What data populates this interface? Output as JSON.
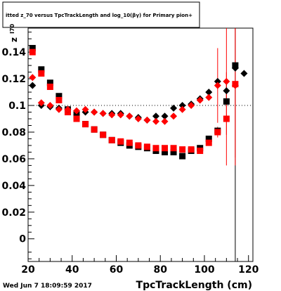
{
  "chart_data": {
    "type": "scatter",
    "title": "itted  z_70 versus TpcTrackLength and log_10(βγ) for Primary pion+",
    "xlabel": "TpcTrackLength (cm)",
    "ylabel": "z",
    "ylabel_sub": "I70",
    "xlim": [
      20,
      122
    ],
    "ylim": [
      -0.017,
      0.158
    ],
    "x_ticks": [
      20,
      40,
      60,
      80,
      100,
      120
    ],
    "y_ticks": [
      0,
      0.02,
      0.04,
      0.06,
      0.08,
      0.1,
      0.12,
      0.14
    ],
    "x_tick_labels": [
      "20",
      "40",
      "60",
      "80",
      "100",
      "120"
    ],
    "y_tick_labels": [
      "0",
      "0.02",
      "0.04",
      "0.06",
      "0.08",
      "0.1",
      "0.12",
      "0.14"
    ],
    "grid": "y-dotted-at-0.1",
    "series": [
      {
        "marker": "square",
        "color": "#000000",
        "points": [
          [
            22,
            0.143,
            0
          ],
          [
            26,
            0.127,
            0
          ],
          [
            30,
            0.117,
            0
          ],
          [
            34,
            0.107,
            0
          ],
          [
            38,
            0.097,
            0
          ],
          [
            42,
            0.092,
            0
          ],
          [
            46,
            0.086,
            0
          ],
          [
            50,
            0.082,
            0
          ],
          [
            54,
            0.078,
            0
          ],
          [
            58,
            0.074,
            0
          ],
          [
            62,
            0.072,
            0
          ],
          [
            66,
            0.07,
            0
          ],
          [
            70,
            0.069,
            0
          ],
          [
            74,
            0.068,
            0
          ],
          [
            78,
            0.066,
            0
          ],
          [
            82,
            0.065,
            0
          ],
          [
            86,
            0.065,
            0
          ],
          [
            90,
            0.062,
            0
          ],
          [
            94,
            0.066,
            0
          ],
          [
            98,
            0.068,
            0
          ],
          [
            102,
            0.075,
            0
          ],
          [
            106,
            0.081,
            0
          ],
          [
            110,
            0.103,
            0
          ],
          [
            114,
            0.13,
            0
          ]
        ]
      },
      {
        "marker": "square",
        "color": "#ff0000",
        "points": [
          [
            22,
            0.14,
            0
          ],
          [
            26,
            0.124,
            0
          ],
          [
            30,
            0.114,
            0
          ],
          [
            34,
            0.104,
            0
          ],
          [
            38,
            0.095,
            0
          ],
          [
            42,
            0.09,
            0
          ],
          [
            46,
            0.086,
            0
          ],
          [
            50,
            0.082,
            0
          ],
          [
            54,
            0.078,
            0
          ],
          [
            58,
            0.074,
            0
          ],
          [
            62,
            0.073,
            0
          ],
          [
            66,
            0.072,
            0
          ],
          [
            70,
            0.07,
            0
          ],
          [
            74,
            0.069,
            0
          ],
          [
            78,
            0.068,
            0
          ],
          [
            82,
            0.068,
            0
          ],
          [
            86,
            0.068,
            0
          ],
          [
            90,
            0.067,
            0
          ],
          [
            94,
            0.067,
            0
          ],
          [
            98,
            0.066,
            0
          ],
          [
            102,
            0.072,
            0
          ],
          [
            106,
            0.08,
            0.004
          ],
          [
            110,
            0.09,
            0.035
          ],
          [
            114,
            0.116,
            0.055
          ]
        ]
      },
      {
        "marker": "diamond",
        "color": "#000000",
        "points": [
          [
            22,
            0.115,
            0
          ],
          [
            26,
            0.1,
            0
          ],
          [
            30,
            0.099,
            0
          ],
          [
            34,
            0.098,
            0
          ],
          [
            38,
            0.097,
            0
          ],
          [
            42,
            0.095,
            0
          ],
          [
            46,
            0.095,
            0
          ],
          [
            50,
            0.095,
            0
          ],
          [
            54,
            0.094,
            0
          ],
          [
            58,
            0.094,
            0
          ],
          [
            62,
            0.094,
            0
          ],
          [
            66,
            0.092,
            0
          ],
          [
            70,
            0.091,
            0
          ],
          [
            74,
            0.089,
            0
          ],
          [
            78,
            0.092,
            0
          ],
          [
            82,
            0.092,
            0
          ],
          [
            86,
            0.098,
            0
          ],
          [
            90,
            0.1,
            0
          ],
          [
            94,
            0.101,
            0
          ],
          [
            98,
            0.105,
            0
          ],
          [
            102,
            0.11,
            0
          ],
          [
            106,
            0.118,
            0
          ],
          [
            110,
            0.111,
            0.008
          ],
          [
            114,
            0.128,
            0.18
          ],
          [
            118,
            0.124,
            0
          ]
        ]
      },
      {
        "marker": "diamond",
        "color": "#ff0000",
        "points": [
          [
            22,
            0.121,
            0
          ],
          [
            26,
            0.102,
            0
          ],
          [
            30,
            0.1,
            0
          ],
          [
            34,
            0.097,
            0
          ],
          [
            38,
            0.097,
            0
          ],
          [
            42,
            0.096,
            0
          ],
          [
            46,
            0.097,
            0
          ],
          [
            50,
            0.095,
            0
          ],
          [
            54,
            0.094,
            0
          ],
          [
            58,
            0.093,
            0
          ],
          [
            62,
            0.093,
            0
          ],
          [
            66,
            0.092,
            0
          ],
          [
            70,
            0.09,
            0
          ],
          [
            74,
            0.089,
            0
          ],
          [
            78,
            0.088,
            0
          ],
          [
            82,
            0.088,
            0
          ],
          [
            86,
            0.092,
            0
          ],
          [
            90,
            0.097,
            0
          ],
          [
            94,
            0.1,
            0
          ],
          [
            98,
            0.104,
            0
          ],
          [
            102,
            0.106,
            0
          ],
          [
            106,
            0.115,
            0.028
          ],
          [
            110,
            0.118,
            0.04
          ],
          [
            114,
            0.115,
            0.06
          ]
        ]
      }
    ]
  },
  "footer": {
    "timestamp": "Wed Jun  7 18:09:59 2017"
  }
}
